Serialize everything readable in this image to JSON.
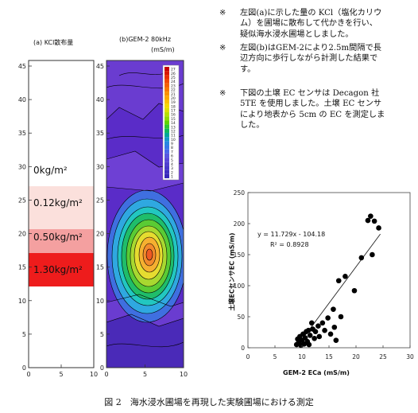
{
  "notes": [
    {
      "mark": "※",
      "lines": [
        "左図(a)に示した量の KCl（塩化カリウ",
        "ム）を圃場に散布して代かきを行い、",
        "疑似海水浸水圃場としました。"
      ]
    },
    {
      "mark": "※",
      "lines": [
        "左図(b)はGEM-2により2.5m間隔で長",
        "辺方向に歩行しながら計測した結果で",
        "す。"
      ]
    },
    {
      "mark": "※",
      "lines": [
        "下図の土壌 EC センサは Decagon 社",
        "5TE を使用しました。土壌 EC センサ",
        "により地表から 5cm の EC を測定しま",
        "した。"
      ]
    }
  ],
  "panel_a": {
    "title": "(a)  KCl散布量",
    "y_ticks": [
      "45",
      "40",
      "35",
      "30",
      "25",
      "20",
      "15",
      "10",
      "5",
      "0"
    ],
    "x_ticks": [
      "0",
      "5",
      "10"
    ],
    "bands": [
      {
        "label": "0kg/m²",
        "color": "#ffffff"
      },
      {
        "label": "0.12kg/m²",
        "color": "#fbe0dc"
      },
      {
        "label": "0.50kg/m²",
        "color": "#f4a0a0"
      },
      {
        "label": "1.30kg/m²",
        "color": "#ee1c1c"
      }
    ]
  },
  "panel_b": {
    "title": "(b)GEM-2 80kHz",
    "unit": "(mS/m)",
    "y_ticks": [
      "45",
      "40",
      "35",
      "30",
      "25",
      "20",
      "15",
      "10",
      "5",
      "0"
    ],
    "x_ticks": [
      "0",
      "5",
      "10"
    ],
    "colorbar_values": [
      "27",
      "26",
      "25",
      "24",
      "23",
      "22",
      "21",
      "20",
      "19",
      "18",
      "17",
      "16",
      "15",
      "14",
      "13",
      "12",
      "11",
      "10",
      "9",
      "8",
      "7",
      "6",
      "5",
      "4",
      "3",
      "2",
      "1"
    ]
  },
  "chart_data": {
    "type": "scatter",
    "xlabel": "GEM-2 ECa (mS/m)",
    "ylabel": "土壌ECセンサEC (mS/m)",
    "xlim": [
      0,
      30
    ],
    "ylim": [
      0,
      250
    ],
    "x_ticks": [
      "0",
      "5",
      "10",
      "15",
      "20",
      "25",
      "30"
    ],
    "y_ticks": [
      "0",
      "50",
      "100",
      "150",
      "200",
      "250"
    ],
    "equation": "y = 11.729x - 104.18",
    "r2": "R² = 0.8928",
    "trendline": {
      "slope": 11.729,
      "intercept": -104.18,
      "x_range": [
        9.2,
        24.5
      ]
    },
    "points": [
      [
        9.0,
        5
      ],
      [
        9.2,
        14
      ],
      [
        9.4,
        9
      ],
      [
        9.6,
        18
      ],
      [
        9.8,
        4
      ],
      [
        10.0,
        12
      ],
      [
        10.2,
        22
      ],
      [
        10.4,
        6
      ],
      [
        10.6,
        16
      ],
      [
        10.8,
        26
      ],
      [
        11.0,
        10
      ],
      [
        11.2,
        28
      ],
      [
        11.3,
        5
      ],
      [
        11.5,
        20
      ],
      [
        11.8,
        40
      ],
      [
        12.0,
        30
      ],
      [
        12.3,
        15
      ],
      [
        12.5,
        26
      ],
      [
        13.0,
        35
      ],
      [
        13.2,
        18
      ],
      [
        13.8,
        40
      ],
      [
        14.2,
        28
      ],
      [
        14.8,
        48
      ],
      [
        15.3,
        22
      ],
      [
        15.8,
        62
      ],
      [
        16.0,
        33
      ],
      [
        16.3,
        12
      ],
      [
        16.8,
        108
      ],
      [
        17.2,
        50
      ],
      [
        18.0,
        115
      ],
      [
        19.7,
        92
      ],
      [
        21.0,
        145
      ],
      [
        22.2,
        205
      ],
      [
        22.7,
        212
      ],
      [
        23.0,
        150
      ],
      [
        23.4,
        204
      ],
      [
        24.2,
        193
      ]
    ]
  },
  "caption": "図 2　海水浸水圃場を再現した実験圃場における測定"
}
